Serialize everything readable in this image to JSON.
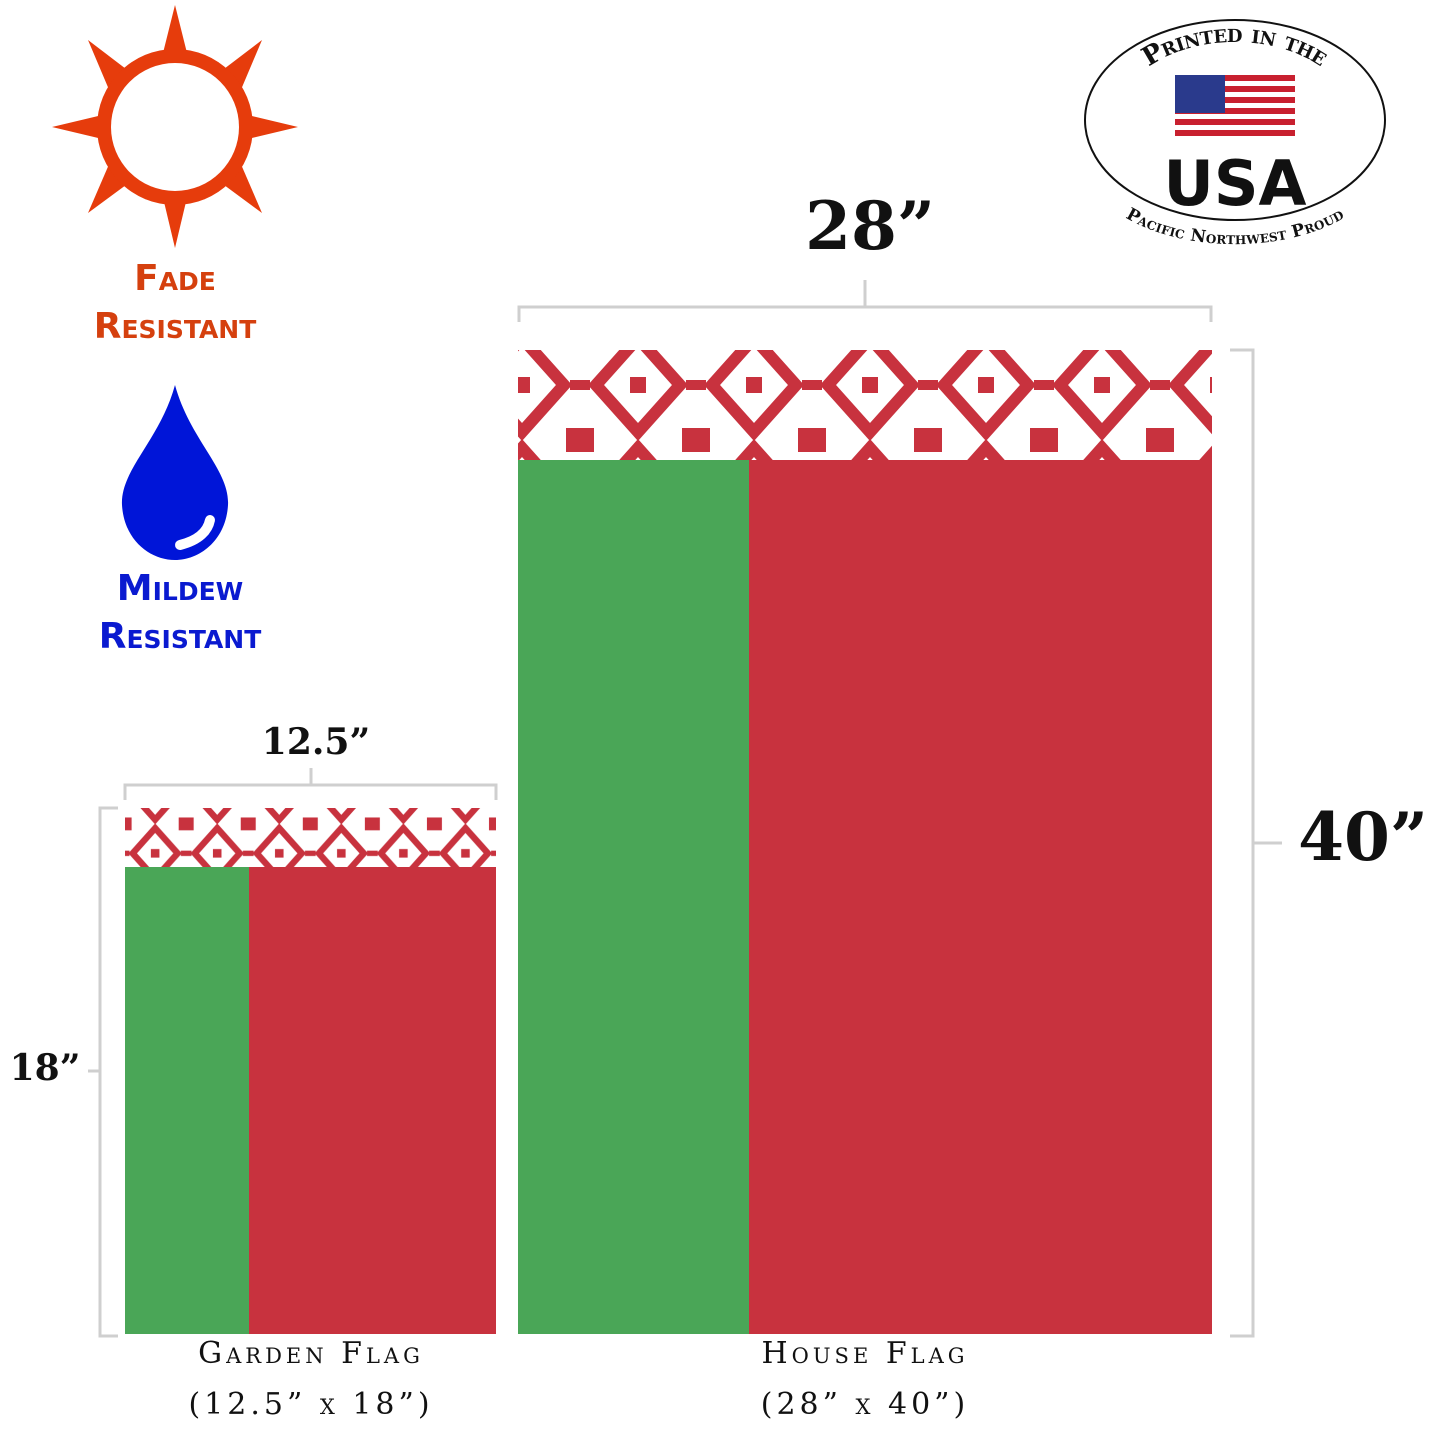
{
  "features": [
    {
      "line1": "Fade",
      "line2": "Resistant"
    },
    {
      "line1": "Mildew",
      "line2": "Resistant"
    }
  ],
  "badge": {
    "top": "Printed in the",
    "main": "USA",
    "bottom": "Pacific Northwest Proud"
  },
  "garden_flag": {
    "width": "12.5”",
    "height": "18”",
    "name": "Garden Flag",
    "size": "(12.5” x 18”)"
  },
  "house_flag": {
    "width": "28”",
    "height": "40”",
    "name": "House Flag",
    "size": "(28” x 40”)"
  }
}
